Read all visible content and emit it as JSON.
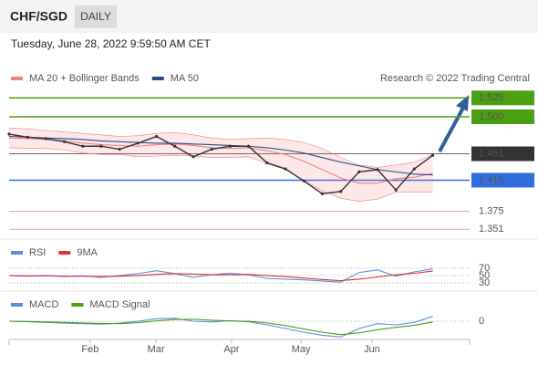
{
  "header": {
    "symbol": "CHF/SGD",
    "period": "DAILY",
    "timestamp": "Tuesday, June 28, 2022 9:59:50 AM CET",
    "source": "Research © 2022 Trading Central"
  },
  "chart_data": [
    {
      "type": "line",
      "x": [
        0,
        4,
        8,
        12,
        16,
        20,
        24,
        28,
        32,
        36,
        40,
        44,
        48,
        52,
        56,
        60,
        64,
        68,
        72,
        76,
        80,
        84,
        88,
        92
      ],
      "xlim": [
        0,
        100
      ],
      "ylim": [
        1.338,
        1.558
      ],
      "values": [
        1.477,
        1.473,
        1.471,
        1.467,
        1.461,
        1.461,
        1.457,
        1.465,
        1.474,
        1.461,
        1.447,
        1.457,
        1.461,
        1.461,
        1.439,
        1.431,
        1.415,
        1.398,
        1.401,
        1.427,
        1.43,
        1.403,
        1.431,
        1.449
      ],
      "color": "#333333",
      "series": [
        {
          "name": "MA 20 + Bollinger Bands",
          "color": "#f08080",
          "values": [
            1.472,
            1.471,
            1.47,
            1.468,
            1.465,
            1.463,
            1.462,
            1.461,
            1.463,
            1.464,
            1.462,
            1.459,
            1.458,
            1.459,
            1.455,
            1.45,
            1.441,
            1.43,
            1.419,
            1.412,
            1.412,
            1.418,
            1.42,
            1.425
          ],
          "upper": [
            1.485,
            1.484,
            1.482,
            1.48,
            1.478,
            1.476,
            1.474,
            1.475,
            1.478,
            1.479,
            1.476,
            1.472,
            1.47,
            1.471,
            1.472,
            1.47,
            1.466,
            1.458,
            1.446,
            1.436,
            1.433,
            1.436,
            1.44,
            1.45
          ],
          "lower": [
            1.459,
            1.458,
            1.458,
            1.456,
            1.452,
            1.45,
            1.45,
            1.447,
            1.448,
            1.449,
            1.448,
            1.446,
            1.446,
            1.447,
            1.438,
            1.43,
            1.416,
            1.402,
            1.392,
            1.388,
            1.391,
            1.4,
            1.4,
            1.4
          ]
        },
        {
          "name": "MA 50",
          "color": "#2e4a86",
          "values": [
            1.474,
            1.473,
            1.472,
            1.471,
            1.47,
            1.468,
            1.467,
            1.466,
            1.465,
            1.465,
            1.464,
            1.463,
            1.462,
            1.461,
            1.459,
            1.456,
            1.452,
            1.446,
            1.44,
            1.435,
            1.43,
            1.427,
            1.424,
            1.423
          ]
        }
      ],
      "levels": [
        {
          "value": 1.525,
          "label": "1.525",
          "color": "#4aa010",
          "boxed": true
        },
        {
          "value": 1.5,
          "label": "1.500",
          "color": "#4aa010",
          "boxed": true
        },
        {
          "value": 1.451,
          "label": "1.451",
          "color": "#333333",
          "boxed": true
        },
        {
          "value": 1.416,
          "label": "1.416",
          "color": "#2f6fe0",
          "boxed": true
        },
        {
          "value": 1.375,
          "label": "1.375",
          "color": "#e04040",
          "boxed": false
        },
        {
          "value": 1.351,
          "label": "1.351",
          "color": "#e04040",
          "boxed": false
        }
      ]
    },
    {
      "type": "line",
      "x": [
        0,
        4,
        8,
        12,
        16,
        20,
        24,
        28,
        32,
        36,
        40,
        44,
        48,
        52,
        56,
        60,
        64,
        68,
        72,
        76,
        80,
        84,
        88,
        92
      ],
      "xlim": [
        0,
        100
      ],
      "ylim": [
        10,
        92
      ],
      "yticks": [
        70,
        50,
        30
      ],
      "grid": true,
      "series": [
        {
          "name": "RSI",
          "color": "#5b8ee0",
          "values": [
            50,
            48,
            50,
            47,
            49,
            45,
            50,
            55,
            63,
            55,
            45,
            52,
            56,
            52,
            42,
            40,
            38,
            35,
            32,
            58,
            65,
            48,
            60,
            68
          ]
        },
        {
          "name": "9MA",
          "color": "#e03030",
          "values": [
            50,
            49,
            49,
            48,
            48,
            47,
            48,
            50,
            53,
            55,
            54,
            52,
            52,
            53,
            50,
            47,
            43,
            39,
            36,
            40,
            46,
            52,
            56,
            62
          ]
        }
      ]
    },
    {
      "type": "line",
      "x": [
        0,
        4,
        8,
        12,
        16,
        20,
        24,
        28,
        32,
        36,
        40,
        44,
        48,
        52,
        56,
        60,
        64,
        68,
        72,
        76,
        80,
        84,
        88,
        92
      ],
      "xlim": [
        0,
        100
      ],
      "ylim": [
        -0.0075,
        0.0045
      ],
      "yticks": [
        0
      ],
      "grid": true,
      "xticks": [
        {
          "value": 17.6,
          "label": "Feb"
        },
        {
          "value": 31.9,
          "label": "Mar"
        },
        {
          "value": 48.3,
          "label": "Apr"
        },
        {
          "value": 63.4,
          "label": "May"
        },
        {
          "value": 78.8,
          "label": "Jun"
        }
      ],
      "series": [
        {
          "name": "MACD",
          "color": "#5b8ee0",
          "values": [
            0,
            -0.0002,
            -0.0005,
            -0.0008,
            -0.001,
            -0.0012,
            -0.0008,
            0,
            0.001,
            0.0012,
            0,
            -0.0003,
            0.0002,
            -0.0002,
            -0.0015,
            -0.003,
            -0.0045,
            -0.0058,
            -0.0065,
            -0.003,
            -0.001,
            -0.0015,
            -0.0005,
            0.002
          ]
        },
        {
          "name": "MACD Signal",
          "color": "#4aa010",
          "values": [
            0,
            -0.0001,
            -0.0003,
            -0.0005,
            -0.0007,
            -0.0009,
            -0.001,
            -0.0006,
            0.0001,
            0.0007,
            0.0008,
            0.0004,
            0.0001,
            0,
            -0.0007,
            -0.0018,
            -0.0032,
            -0.0045,
            -0.0055,
            -0.0048,
            -0.0035,
            -0.0025,
            -0.0017,
            -0.0003
          ]
        }
      ]
    }
  ]
}
